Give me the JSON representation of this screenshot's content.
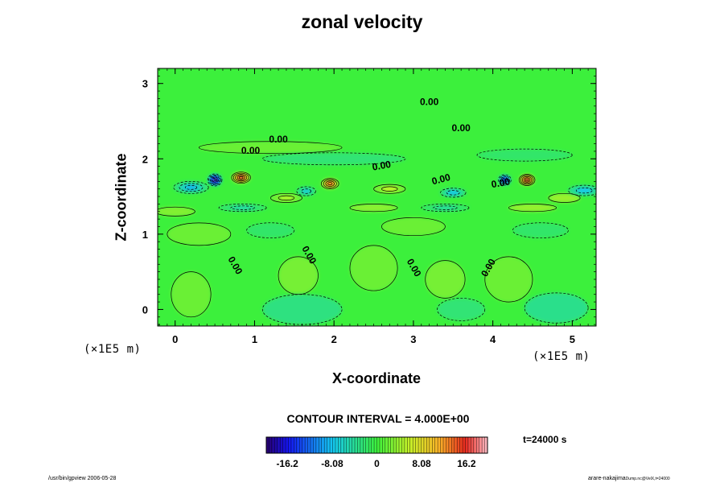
{
  "chart_data": {
    "type": "heatmap",
    "title": "zonal velocity",
    "xlabel": "X-coordinate",
    "ylabel": "Z-coordinate",
    "x_unit": "(×1E5 m)",
    "z_unit": "(×1E5 m)",
    "x_ticks": [
      "0",
      "1",
      "2",
      "3",
      "4",
      "5"
    ],
    "y_ticks": [
      "0",
      "1",
      "2",
      "3"
    ],
    "xlim": [
      -0.22,
      5.3
    ],
    "ylim": [
      -0.22,
      3.2
    ],
    "contour_interval_label": "CONTOUR INTERVAL = 4.000E+00",
    "time_label": "t=24000 s",
    "colorbar": {
      "range": [
        -20,
        20
      ],
      "tick_labels": [
        "-16.2",
        "-8.08",
        "0",
        "8.08",
        "16.2"
      ],
      "tick_values": [
        -16.2,
        -8.08,
        0,
        8.08,
        16.2
      ]
    },
    "contour_labels": [
      {
        "text": "0.00",
        "x": 3.2,
        "z": 2.75,
        "angle": 0
      },
      {
        "text": "0.00",
        "x": 3.6,
        "z": 2.4,
        "angle": 0
      },
      {
        "text": "0.00",
        "x": 1.3,
        "z": 2.25,
        "angle": 0
      },
      {
        "text": "0.00",
        "x": 0.95,
        "z": 2.1,
        "angle": 0
      },
      {
        "text": "0.00",
        "x": 2.6,
        "z": 1.9,
        "angle": -10
      },
      {
        "text": "0.00",
        "x": 3.35,
        "z": 1.72,
        "angle": -15
      },
      {
        "text": "0.00",
        "x": 4.1,
        "z": 1.67,
        "angle": -10
      },
      {
        "text": "0.00",
        "x": 0.75,
        "z": 0.58,
        "angle": 60
      },
      {
        "text": "0.00",
        "x": 1.68,
        "z": 0.72,
        "angle": 60
      },
      {
        "text": "0.00",
        "x": 3.0,
        "z": 0.55,
        "angle": 60
      },
      {
        "text": "0.00",
        "x": 3.95,
        "z": 0.55,
        "angle": -60
      }
    ],
    "extrema": [
      {
        "x": 0.5,
        "z": 1.72,
        "value": -22.0,
        "rx": 0.09,
        "rz": 0.08
      },
      {
        "x": 0.83,
        "z": 1.75,
        "value": 17.0,
        "rx": 0.12,
        "rz": 0.075
      },
      {
        "x": 1.95,
        "z": 1.67,
        "value": 15.0,
        "rx": 0.11,
        "rz": 0.07
      },
      {
        "x": 4.15,
        "z": 1.72,
        "value": -17.0,
        "rx": 0.08,
        "rz": 0.07
      },
      {
        "x": 4.43,
        "z": 1.72,
        "value": 17.0,
        "rx": 0.1,
        "rz": 0.075
      },
      {
        "x": 0.2,
        "z": 1.62,
        "value": -9.0,
        "rx": 0.22,
        "rz": 0.08
      },
      {
        "x": 1.65,
        "z": 1.57,
        "value": -7.0,
        "rx": 0.12,
        "rz": 0.06
      },
      {
        "x": 3.5,
        "z": 1.55,
        "value": -8.0,
        "rx": 0.16,
        "rz": 0.06
      },
      {
        "x": 5.15,
        "z": 1.58,
        "value": -8.0,
        "rx": 0.2,
        "rz": 0.07
      },
      {
        "x": 1.4,
        "z": 1.48,
        "value": 5.0,
        "rx": 0.2,
        "rz": 0.06
      },
      {
        "x": 2.7,
        "z": 1.6,
        "value": 6.0,
        "rx": 0.2,
        "rz": 0.06
      },
      {
        "x": 4.9,
        "z": 1.48,
        "value": 4.0,
        "rx": 0.2,
        "rz": 0.06
      },
      {
        "x": 0.0,
        "z": 1.3,
        "value": 3.0,
        "rx": 0.25,
        "rz": 0.06
      },
      {
        "x": 0.85,
        "z": 1.35,
        "value": -5.0,
        "rx": 0.3,
        "rz": 0.05
      },
      {
        "x": 2.5,
        "z": 1.35,
        "value": 3.5,
        "rx": 0.3,
        "rz": 0.05
      },
      {
        "x": 3.4,
        "z": 1.35,
        "value": -4.5,
        "rx": 0.3,
        "rz": 0.05
      },
      {
        "x": 4.5,
        "z": 1.35,
        "value": 4.0,
        "rx": 0.3,
        "rz": 0.05
      },
      {
        "x": 1.6,
        "z": 0.0,
        "value": -3.0,
        "rx": 0.5,
        "rz": 0.2
      },
      {
        "x": 4.8,
        "z": 0.02,
        "value": -3.5,
        "rx": 0.4,
        "rz": 0.2
      },
      {
        "x": 3.6,
        "z": 0.0,
        "value": -2.5,
        "rx": 0.3,
        "rz": 0.15
      },
      {
        "x": 1.55,
        "z": 0.45,
        "value": 2.5,
        "rx": 0.25,
        "rz": 0.25
      },
      {
        "x": 3.4,
        "z": 0.4,
        "value": 2.5,
        "rx": 0.25,
        "rz": 0.25
      },
      {
        "x": 2.5,
        "z": 0.55,
        "value": 2.0,
        "rx": 0.3,
        "rz": 0.3
      },
      {
        "x": 4.2,
        "z": 0.4,
        "value": 2.0,
        "rx": 0.3,
        "rz": 0.3
      },
      {
        "x": 0.2,
        "z": 0.2,
        "value": 2.0,
        "rx": 0.25,
        "rz": 0.3
      },
      {
        "x": 0.3,
        "z": 1.0,
        "value": 2.0,
        "rx": 0.4,
        "rz": 0.15
      },
      {
        "x": 1.2,
        "z": 1.05,
        "value": -2.0,
        "rx": 0.3,
        "rz": 0.1
      },
      {
        "x": 3.0,
        "z": 1.1,
        "value": 2.0,
        "rx": 0.4,
        "rz": 0.12
      },
      {
        "x": 4.6,
        "z": 1.05,
        "value": -2.0,
        "rx": 0.35,
        "rz": 0.1
      },
      {
        "x": 2.0,
        "z": 2.0,
        "value": -2.5,
        "rx": 0.9,
        "rz": 0.08
      },
      {
        "x": 4.4,
        "z": 2.05,
        "value": -2.0,
        "rx": 0.6,
        "rz": 0.08
      },
      {
        "x": 1.2,
        "z": 2.15,
        "value": 2.0,
        "rx": 0.9,
        "rz": 0.08
      }
    ]
  },
  "footer": {
    "left": "/usr/bin/gpview 2006-05-28",
    "right_main": "arare-nakajima",
    "right_small": "Dump.nc@VelX,t=24000"
  }
}
